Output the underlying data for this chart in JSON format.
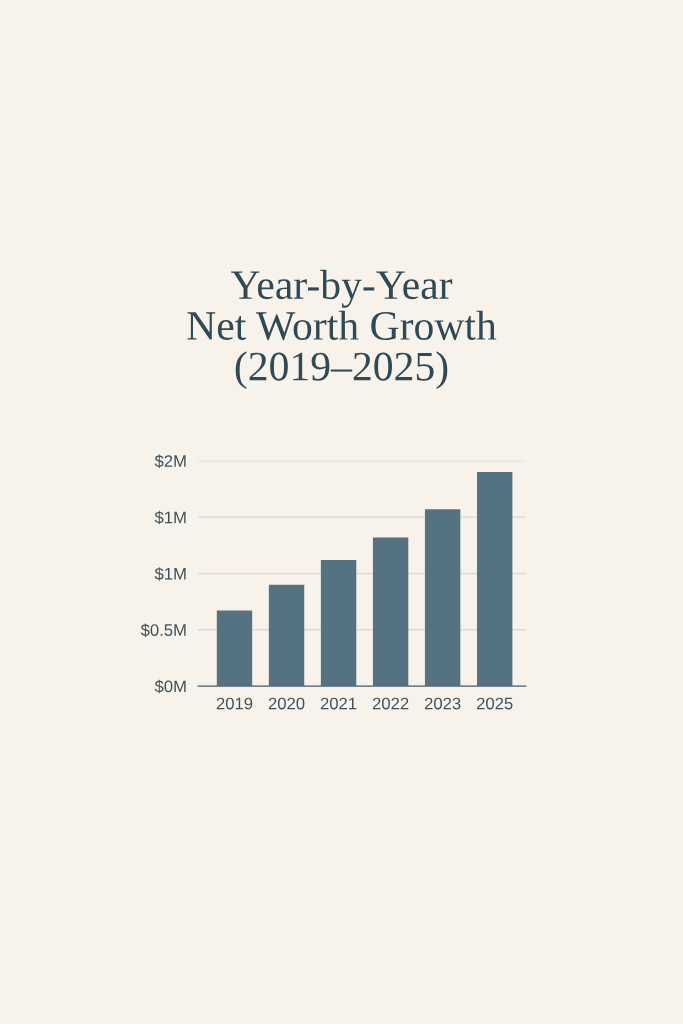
{
  "chart_data": {
    "type": "bar",
    "title": "Year-by-Year\nNet Worth Growth\n(2019–2025)",
    "categories": [
      "2019",
      "2020",
      "2021",
      "2022",
      "2023",
      "2025"
    ],
    "values": [
      0.67,
      0.9,
      1.12,
      1.32,
      1.57,
      1.9
    ],
    "color": "#557282",
    "ylim": [
      0,
      2
    ],
    "yticks": [
      {
        "value": 0,
        "label": "$0M"
      },
      {
        "value": 0.5,
        "label": "$0.5M"
      },
      {
        "value": 1,
        "label": "$1M"
      },
      {
        "value": 1.5,
        "label": "$1M"
      },
      {
        "value": 2,
        "label": "$2M"
      }
    ],
    "grid": "y"
  }
}
